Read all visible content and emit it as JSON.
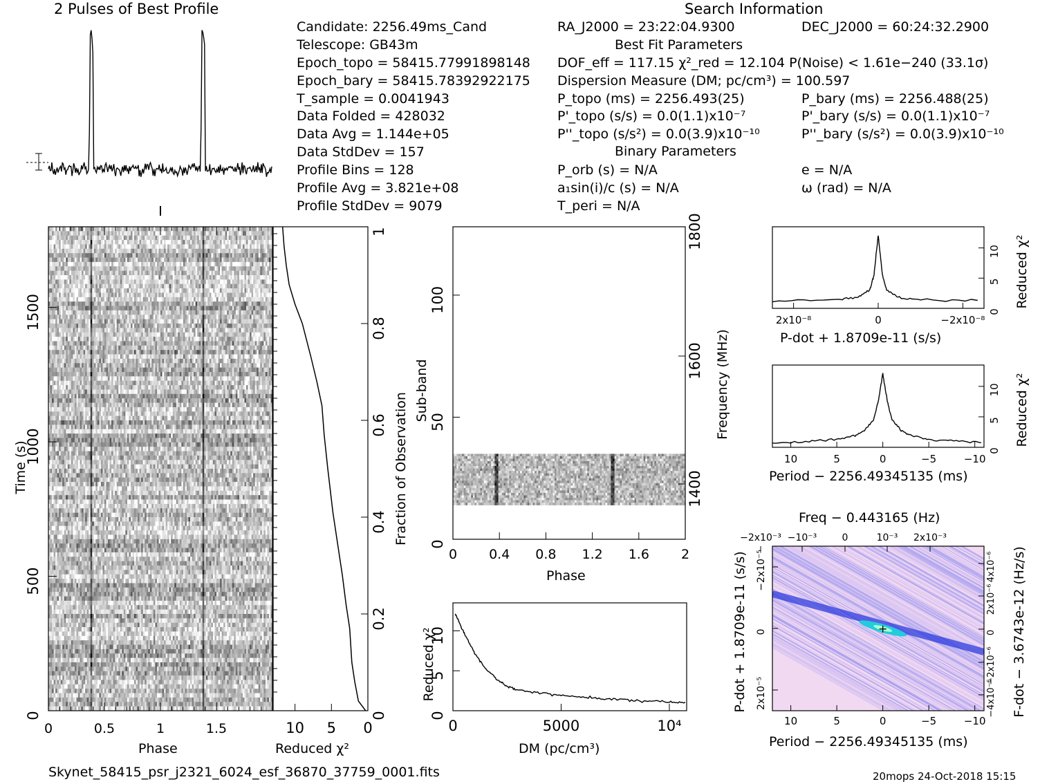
{
  "titles": {
    "profile": "2 Pulses of Best Profile",
    "search": "Search Information",
    "best_fit": "Best Fit Parameters",
    "binary": "Binary Parameters"
  },
  "info_left": [
    "Candidate:  2256.49ms_Cand",
    "Telescope:  GB43m",
    "Epoch_topo = 58415.77991898148",
    "Epoch_bary = 58415.78392922175",
    "T_sample      =  0.0041943",
    "Data Folded   =  428032",
    "Data Avg      =  1.144e+05",
    "Data StdDev   =  157",
    "Profile Bins  =  128",
    "Profile Avg   =  3.821e+08",
    "Profile StdDev =  9079"
  ],
  "info_mid": {
    "ra": "RA_J2000 = 23:22:04.9300",
    "dof": "DOF_eff = 117.15  χ²_red = 12.104  P(Noise) < 1.61e−240  (33.1σ)",
    "dm": "Dispersion Measure (DM; pc/cm³) = 100.597",
    "ptopo": "P_topo (ms) =  2256.493(25)",
    "pdtopo": "P'_topo (s/s) = 0.0(1.1)x10⁻⁷",
    "pddtopo": "P''_topo (s/s²) = 0.0(3.9)x10⁻¹⁰",
    "porb": "P_orb (s) = N/A",
    "a1": "a₁sin(i)/c (s) = N/A",
    "tperi": "T_peri = N/A"
  },
  "info_right": {
    "dec": "DEC_J2000 = 60:24:32.2900",
    "pbary": "P_bary (ms) =  2256.488(25)",
    "pdbary": "P'_bary (s/s) = 0.0(1.1)x10⁻⁷",
    "pddbary": "P''_bary (s/s²) = 0.0(3.9)x10⁻¹⁰",
    "e": "e = N/A",
    "omega": "ω (rad) = N/A"
  },
  "footer": {
    "filename": "Skynet_58415_psr_j2321_6024_esf_36870_37759_0001.fits",
    "stamp": "20mops 24-Oct-2018 15:15"
  },
  "chart_data": [
    {
      "type": "line",
      "name": "profile",
      "title": "2 Pulses of Best Profile",
      "x": [
        0,
        0.35,
        0.37,
        0.38,
        0.39,
        0.41,
        0.42,
        1.0,
        1.35,
        1.37,
        1.38,
        1.39,
        1.41,
        1.42,
        2.0
      ],
      "y_relative": [
        0,
        0,
        0.35,
        0.72,
        1.0,
        0.7,
        0.05,
        0,
        0,
        0.35,
        0.72,
        1.0,
        0.7,
        0.05,
        0
      ],
      "xlim": [
        0,
        2
      ]
    },
    {
      "type": "heatmap",
      "name": "time-phase",
      "xlabel": "Phase",
      "ylabel": "Time (s)",
      "xticks": [
        "0",
        "0.5",
        "1",
        "1.5"
      ],
      "yticks": [
        "0",
        "500",
        "1000",
        "1500"
      ],
      "xlim": [
        0,
        2
      ],
      "ylim": [
        0,
        1800
      ],
      "pulse_phases": [
        0.38,
        1.38
      ]
    },
    {
      "type": "line",
      "name": "reduced-chi2-vs-time",
      "xlabel": "Reduced χ²",
      "ylabel": "Fraction of Observation",
      "xticks": [
        "10",
        "5",
        "0"
      ],
      "yticks": [
        "0",
        "0.2",
        "0.4",
        "0.6",
        "0.8",
        "1"
      ],
      "xlim": [
        13,
        0
      ],
      "ylim": [
        0,
        1
      ],
      "x": [
        0.3,
        1.3,
        1.8,
        2.2,
        2.5,
        3.0,
        3.5,
        4.2,
        4.8,
        5.5,
        6.0,
        6.3,
        7.0,
        7.8,
        9.0,
        10.0,
        10.8,
        11.2,
        11.5,
        11.7
      ],
      "y": [
        0,
        0.02,
        0.06,
        0.1,
        0.17,
        0.22,
        0.28,
        0.35,
        0.41,
        0.5,
        0.57,
        0.63,
        0.68,
        0.73,
        0.8,
        0.84,
        0.88,
        0.92,
        0.96,
        1.0
      ]
    },
    {
      "type": "heatmap",
      "name": "subband-phase",
      "xlabel": "Phase",
      "ylabel": "Sub-band",
      "y2label": "Frequency (MHz)",
      "xticks": [
        "0",
        "0.4",
        "0.8",
        "1.2",
        "1.6",
        "2"
      ],
      "yticks": [
        "0",
        "50",
        "100"
      ],
      "y2ticks": [
        "1400",
        "1600",
        "1800"
      ],
      "xlim": [
        0,
        2
      ],
      "ylim": [
        0,
        128
      ],
      "filled_subbands": [
        14,
        35
      ],
      "pulse_phases": [
        0.38,
        1.38
      ]
    },
    {
      "type": "line",
      "name": "dm-curve",
      "xlabel": "DM (pc/cm³)",
      "ylabel": "Reduced χ²",
      "xticks": [
        "0",
        "5000",
        "10⁴"
      ],
      "yticks": [
        "0",
        "5",
        "10"
      ],
      "xlim": [
        0,
        10800
      ],
      "ylim": [
        0,
        13.5
      ],
      "x": [
        100,
        300,
        600,
        1000,
        1500,
        2000,
        2500,
        3000,
        4000,
        5000,
        6000,
        7000,
        8000,
        9000,
        10000,
        10800
      ],
      "y": [
        12.1,
        11.0,
        9.3,
        7.2,
        5.3,
        4.0,
        3.1,
        2.6,
        2.2,
        1.9,
        1.7,
        1.5,
        1.35,
        1.2,
        1.1,
        1.0
      ]
    },
    {
      "type": "line",
      "name": "pdot-curve",
      "xlabel": "P-dot + 1.8709e-11 (s/s)",
      "ylabel": "Reduced χ²",
      "xticks": [
        "2x10⁻⁸",
        "0",
        "−2x10⁻⁸"
      ],
      "yticks": [
        "0",
        "5",
        "10"
      ],
      "xlim": [
        2.5e-08,
        -2.5e-08
      ],
      "ylim": [
        0,
        13.5
      ],
      "x": [
        2.5e-08,
        1e-08,
        5e-09,
        2e-09,
        1e-09,
        0,
        -1e-09,
        -2e-09,
        -5e-09,
        -1e-08,
        -2.5e-08
      ],
      "y": [
        1.2,
        1.4,
        1.8,
        3.0,
        5.5,
        12.1,
        5.5,
        3.0,
        1.8,
        1.4,
        1.2
      ]
    },
    {
      "type": "line",
      "name": "period-curve",
      "xlabel": "Period − 2256.49345135 (ms)",
      "ylabel": "Reduced χ²",
      "xticks": [
        "10",
        "5",
        "0",
        "−5",
        "−10"
      ],
      "yticks": [
        "0",
        "5",
        "10"
      ],
      "xlim": [
        12,
        -11
      ],
      "ylim": [
        0,
        13.5
      ],
      "x": [
        12,
        8,
        5,
        3,
        2,
        1,
        0.5,
        0,
        -0.5,
        -1,
        -2,
        -3,
        -5,
        -8,
        -11
      ],
      "y": [
        0.8,
        1.0,
        1.3,
        1.9,
        2.8,
        4.5,
        7.5,
        12.1,
        7.5,
        4.5,
        2.8,
        1.9,
        1.3,
        1.0,
        0.8
      ]
    },
    {
      "type": "heatmap",
      "name": "period-pdot-plane",
      "title": "Freq − 0.443165 (Hz)",
      "xlabel": "Period − 2256.49345135 (ms)",
      "ylabel": "P-dot + 1.8709e-11 (s/s)",
      "y2label": "F-dot − 3.6743e-12 (Hz/s)",
      "xticks": [
        "10",
        "5",
        "0",
        "−5",
        "−10"
      ],
      "x2ticks": [
        "−2x10⁻³",
        "−10⁻³",
        "0",
        "10⁻³",
        "2x10⁻³"
      ],
      "yticks": [
        "−2x10⁻⁵",
        "0",
        "2x10⁻⁵"
      ],
      "y2ticks": [
        "4x10⁻⁶",
        "2x10⁻⁶",
        "0",
        "−2x10⁻⁶",
        "−4x10⁻⁶"
      ],
      "xlim": [
        12,
        -11
      ],
      "ylim": [
        -3e-05,
        3e-05
      ],
      "peak": [
        0,
        0
      ]
    }
  ],
  "colors": {
    "plane_bg": "#f2d9f2",
    "plane_mid": "#8888ee",
    "plane_hi": "#2233dd",
    "plane_peak": "#22ccdd"
  }
}
